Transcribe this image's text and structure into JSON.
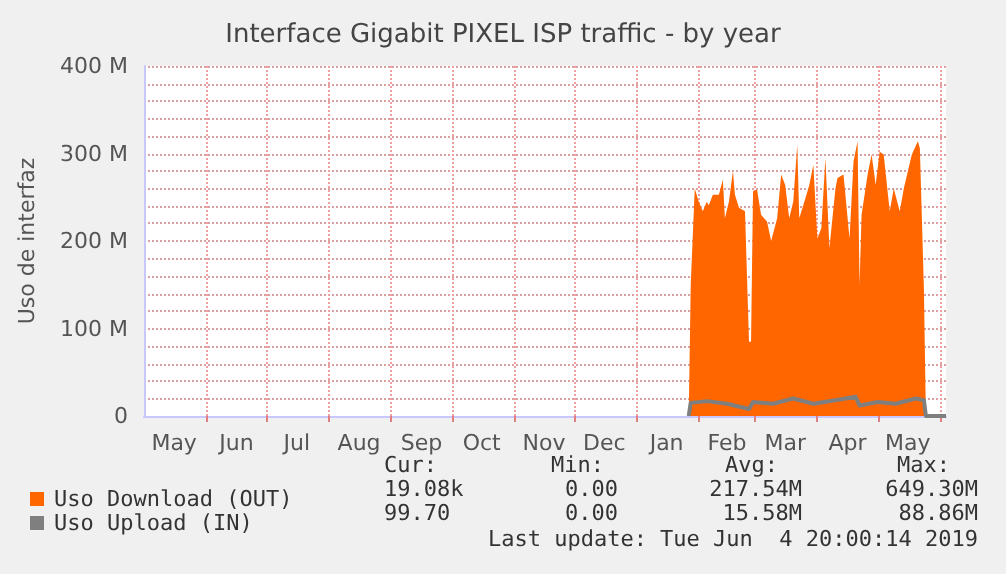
{
  "chart_data": {
    "type": "area",
    "title": "Interface Gigabit PIXEL ISP traffic - by year",
    "ylabel": "Uso de interfaz",
    "xlim": [
      "2018-05-01",
      "2019-06-04"
    ],
    "xticks": [
      {
        "value": "2018-05-16",
        "label": "May"
      },
      {
        "value": "2018-06-01",
        "label": null
      },
      {
        "value": "2018-06-16",
        "label": "Jun"
      },
      {
        "value": "2018-07-01",
        "label": null
      },
      {
        "value": "2018-07-16",
        "label": "Jul"
      },
      {
        "value": "2018-08-01",
        "label": null
      },
      {
        "value": "2018-08-16",
        "label": "Aug"
      },
      {
        "value": "2018-09-01",
        "label": null
      },
      {
        "value": "2018-09-16",
        "label": "Sep"
      },
      {
        "value": "2018-10-01",
        "label": null
      },
      {
        "value": "2018-10-16",
        "label": "Oct"
      },
      {
        "value": "2018-11-01",
        "label": null
      },
      {
        "value": "2018-11-16",
        "label": "Nov"
      },
      {
        "value": "2018-12-01",
        "label": null
      },
      {
        "value": "2018-12-16",
        "label": "Dec"
      },
      {
        "value": "2019-01-01",
        "label": null
      },
      {
        "value": "2019-01-16",
        "label": "Jan"
      },
      {
        "value": "2019-02-01",
        "label": null
      },
      {
        "value": "2019-02-15",
        "label": "Feb"
      },
      {
        "value": "2019-03-01",
        "label": null
      },
      {
        "value": "2019-03-16",
        "label": "Mar"
      },
      {
        "value": "2019-04-01",
        "label": null
      },
      {
        "value": "2019-04-16",
        "label": "Apr"
      },
      {
        "value": "2019-05-01",
        "label": null
      },
      {
        "value": "2019-05-16",
        "label": "May"
      },
      {
        "value": "2019-06-01",
        "label": null
      }
    ],
    "ylim": [
      0,
      400
    ],
    "yticks": [
      {
        "value": 0,
        "label": "0"
      },
      {
        "value": 20,
        "label": null
      },
      {
        "value": 40,
        "label": null
      },
      {
        "value": 60,
        "label": null
      },
      {
        "value": 80,
        "label": null
      },
      {
        "value": 100,
        "label": "100 M"
      },
      {
        "value": 120,
        "label": null
      },
      {
        "value": 140,
        "label": null
      },
      {
        "value": 160,
        "label": null
      },
      {
        "value": 180,
        "label": null
      },
      {
        "value": 200,
        "label": "200 M"
      },
      {
        "value": 220,
        "label": null
      },
      {
        "value": 240,
        "label": null
      },
      {
        "value": 260,
        "label": null
      },
      {
        "value": 280,
        "label": null
      },
      {
        "value": 300,
        "label": "300 M"
      },
      {
        "value": 320,
        "label": null
      },
      {
        "value": 340,
        "label": null
      },
      {
        "value": 360,
        "label": null
      },
      {
        "value": 380,
        "label": null
      },
      {
        "value": 400,
        "label": "400 M"
      }
    ],
    "grid": true,
    "legend": "bottom",
    "series": [
      {
        "name": "Uso Download (OUT)",
        "color": "#ff6600",
        "x": [
          "2019-01-27",
          "2019-01-28",
          "2019-01-30",
          "2019-02-01",
          "2019-02-03",
          "2019-02-05",
          "2019-02-06",
          "2019-02-08",
          "2019-02-11",
          "2019-02-13",
          "2019-02-14",
          "2019-02-16",
          "2019-02-18",
          "2019-02-19",
          "2019-02-21",
          "2019-02-24",
          "2019-02-26",
          "2019-02-27",
          "2019-02-28",
          "2019-03-02",
          "2019-03-04",
          "2019-03-07",
          "2019-03-09",
          "2019-03-12",
          "2019-03-14",
          "2019-03-16",
          "2019-03-18",
          "2019-03-20",
          "2019-03-22",
          "2019-03-23",
          "2019-03-25",
          "2019-03-28",
          "2019-03-30",
          "2019-04-01",
          "2019-04-03",
          "2019-04-05",
          "2019-04-07",
          "2019-04-10",
          "2019-04-11",
          "2019-04-14",
          "2019-04-17",
          "2019-04-19",
          "2019-04-21",
          "2019-04-22",
          "2019-04-23",
          "2019-04-26",
          "2019-04-28",
          "2019-04-30",
          "2019-05-02",
          "2019-05-04",
          "2019-05-07",
          "2019-05-09",
          "2019-05-12",
          "2019-05-14",
          "2019-05-18",
          "2019-05-21",
          "2019-05-22",
          "2019-05-24",
          "2019-05-25",
          "2019-06-04"
        ],
        "values": [
          0,
          150,
          260,
          245,
          234,
          245,
          241,
          253,
          253,
          270,
          226,
          245,
          280,
          253,
          238,
          234,
          85,
          85,
          257,
          259,
          230,
          222,
          200,
          226,
          276,
          264,
          226,
          245,
          310,
          226,
          241,
          264,
          287,
          203,
          215,
          295,
          192,
          260,
          272,
          276,
          203,
          291,
          314,
          150,
          230,
          276,
          299,
          264,
          302,
          299,
          234,
          260,
          234,
          260,
          299,
          314,
          306,
          146,
          0,
          0
        ]
      },
      {
        "name": "Uso Upload (IN)",
        "type": "line",
        "color": "#7f7f7f",
        "x": [
          "2019-01-27",
          "2019-01-28",
          "2019-02-05",
          "2019-02-15",
          "2019-02-26",
          "2019-02-28",
          "2019-03-10",
          "2019-03-20",
          "2019-03-30",
          "2019-04-10",
          "2019-04-20",
          "2019-04-22",
          "2019-05-01",
          "2019-05-10",
          "2019-05-20",
          "2019-05-24",
          "2019-05-25",
          "2019-06-04"
        ],
        "values": [
          0,
          15,
          17,
          14,
          8,
          16,
          14,
          20,
          14,
          18,
          22,
          12,
          16,
          14,
          20,
          18,
          0,
          0
        ]
      }
    ],
    "annotations": [
      "Cur:",
      "Min:",
      "Avg:",
      "Max:",
      "19.08k",
      "0.00",
      "217.54M",
      "649.30M",
      "99.70",
      "0.00",
      "15.58M",
      "88.86M",
      "Last update: Tue Jun  4 20:00:14 2019"
    ]
  }
}
